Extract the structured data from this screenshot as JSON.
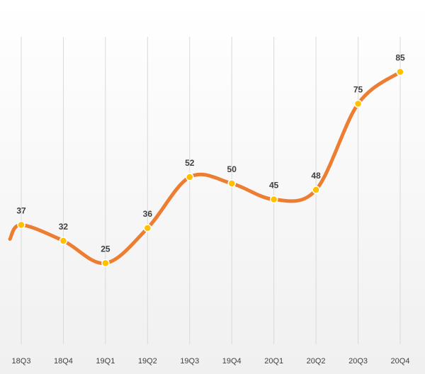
{
  "chart_data": {
    "type": "line",
    "title": "",
    "xlabel": "",
    "ylabel": "",
    "categories": [
      "18Q3",
      "18Q4",
      "19Q1",
      "19Q2",
      "19Q3",
      "19Q4",
      "20Q1",
      "20Q2",
      "20Q3",
      "20Q4"
    ],
    "series": [
      {
        "values": [
          37,
          32,
          25,
          36,
          52,
          50,
          45,
          48,
          75,
          85
        ]
      }
    ],
    "ylim": [
      0,
      90
    ],
    "grid": "vertical",
    "data_labels": true,
    "smooth": true,
    "colors": {
      "line": "#ED7D31",
      "marker": "#FFC000",
      "gridline": "#D9D9D9",
      "background_top": "#FFFFFF",
      "background_bottom": "#F0F0F0"
    }
  }
}
